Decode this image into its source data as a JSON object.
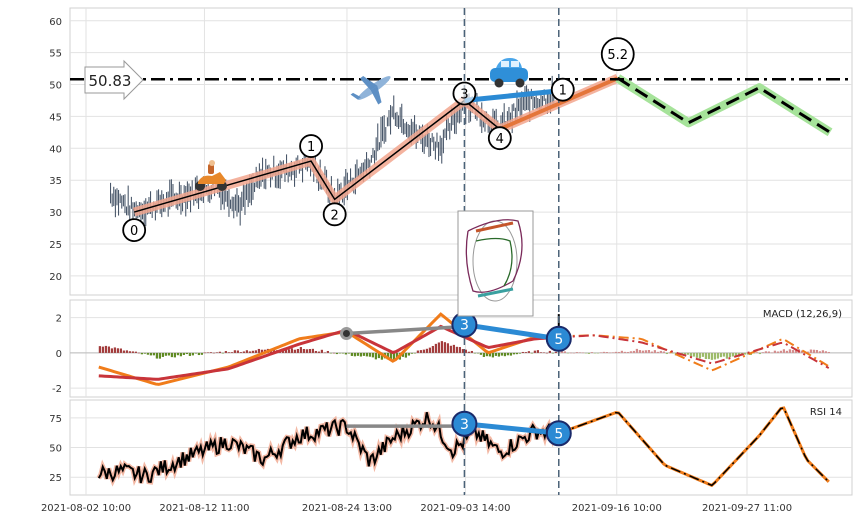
{
  "chart_data": {
    "type": "line",
    "x_ticks": [
      "2021-08-02 10:00",
      "2021-08-12 11:00",
      "2021-08-24 13:00",
      "2021-09-03 14:00",
      "2021-09-16 10:00",
      "2021-09-27 11:00"
    ],
    "price_panel": {
      "ylim": [
        17,
        62
      ],
      "yticks": [
        20,
        25,
        30,
        35,
        40,
        45,
        50,
        55,
        60
      ],
      "level": 50.83,
      "level_label": "50.83",
      "waves": [
        {
          "label": "0",
          "x": "2021-08-06",
          "y": 30
        },
        {
          "label": "1",
          "x": "2021-08-21",
          "y": 38
        },
        {
          "label": "2",
          "x": "2021-08-23",
          "y": 32
        },
        {
          "label": "3",
          "x": "2021-09-03",
          "y": 47.5
        },
        {
          "label": "4",
          "x": "2021-09-06",
          "y": 43
        },
        {
          "label": "1",
          "x": "2021-09-11",
          "y": 47
        },
        {
          "label": "5.2",
          "x": "2021-09-16",
          "y": 51
        }
      ],
      "projection": [
        {
          "x": "2021-09-16",
          "y": 51
        },
        {
          "x": "2021-09-22",
          "y": 44
        },
        {
          "x": "2021-09-28",
          "y": 49.5
        },
        {
          "x": "2021-10-04",
          "y": 42.5
        }
      ],
      "divergence_line": [
        {
          "x": "2021-09-03",
          "y": 47.5
        },
        {
          "x": "2021-09-11",
          "y": 49
        }
      ],
      "vlines": [
        "2021-09-03",
        "2021-09-11"
      ],
      "icons": [
        "scooter-icon",
        "airplane-icon",
        "car-icon"
      ]
    },
    "macd_panel": {
      "title": "MACD (12,26,9)",
      "ylim": [
        -2.5,
        3
      ],
      "yticks": [
        -2,
        0,
        2
      ],
      "markers": [
        {
          "label": "3",
          "x": "2021-09-03",
          "y": 1.6
        },
        {
          "label": "5",
          "x": "2021-09-11",
          "y": 0.8
        }
      ]
    },
    "rsi_panel": {
      "title": "RSI 14",
      "ylim": [
        10,
        90
      ],
      "yticks": [
        25,
        50,
        75
      ],
      "markers": [
        {
          "label": "3",
          "x": "2021-09-03",
          "y": 70
        },
        {
          "label": "5",
          "x": "2021-09-11",
          "y": 62
        }
      ]
    }
  }
}
